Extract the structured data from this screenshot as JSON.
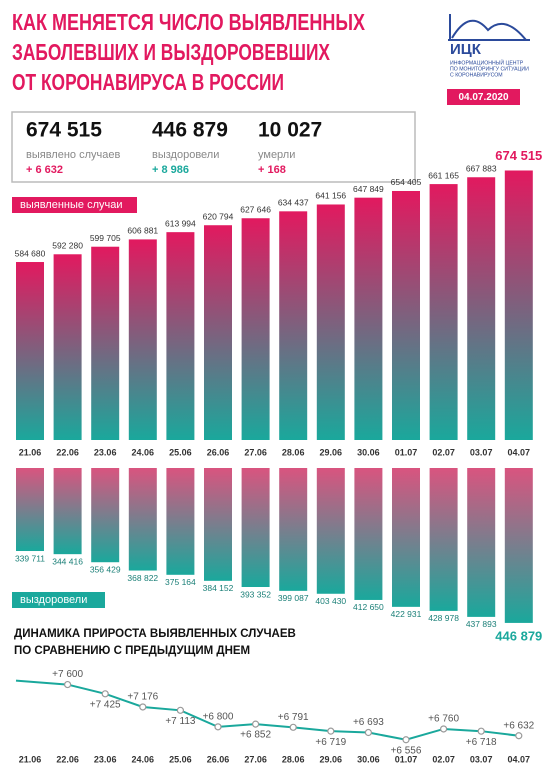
{
  "header": {
    "title": [
      "КАК МЕНЯЕТСЯ ЧИСЛО ВЫЯВЛЕННЫХ",
      "ЗАБОЛЕВШИХ И ВЫЗДОРОВЕВШИХ",
      "ОТ КОРОНАВИРУСА В РОССИИ"
    ],
    "logo": {
      "name": "ИЦК",
      "lines": [
        "ИНФОРМАЦИОННЫЙ ЦЕНТР",
        "ПО МОНИТОРИНГУ СИТУАЦИИ",
        "С КОРОНАВИРУСОМ"
      ]
    },
    "date": "04.07.2020"
  },
  "stats": [
    {
      "value": "674 515",
      "label": "выявлено случаев",
      "change": "+ 6 632",
      "color": "#e2195f"
    },
    {
      "value": "446 879",
      "label": "выздоровели",
      "change": "+ 8 986",
      "color": "#1aa89c"
    },
    {
      "value": "10 027",
      "label": "умерли",
      "change": "+ 168",
      "color": "#e2195f"
    }
  ],
  "chart_data": [
    {
      "type": "bar",
      "name": "выявленные случаи",
      "categories": [
        "21.06",
        "22.06",
        "23.06",
        "24.06",
        "25.06",
        "26.06",
        "27.06",
        "28.06",
        "29.06",
        "30.06",
        "01.07",
        "02.07",
        "03.07",
        "04.07"
      ],
      "values": [
        584680,
        592280,
        599705,
        606881,
        613994,
        620794,
        627646,
        634437,
        641156,
        647849,
        654405,
        661165,
        667883,
        674515
      ],
      "value_labels": [
        "584 680",
        "592 280",
        "599 705",
        "606 881",
        "613 994",
        "620 794",
        "627 646",
        "634 437",
        "641 156",
        "647 849",
        "654 405",
        "661 165",
        "667 883",
        "674 515"
      ],
      "colors": [
        "#e2195f",
        "#1aa89c"
      ],
      "ylim": [
        410000,
        675000
      ],
      "inverted": false,
      "highlight_last": true
    },
    {
      "type": "bar",
      "name": "выздоровели",
      "values": [
        339711,
        344416,
        356429,
        368822,
        375164,
        384152,
        393352,
        399087,
        403430,
        412650,
        422931,
        428978,
        437893,
        446879
      ],
      "value_labels": [
        "339 711",
        "344 416",
        "356 429",
        "368 822",
        "375 164",
        "384 152",
        "393 352",
        "399 087",
        "403 430",
        "412 650",
        "422 931",
        "428 978",
        "437 893",
        "446 879"
      ],
      "colors": [
        "#d9547f",
        "#1aa89c"
      ],
      "ylim": [
        216000,
        447000
      ],
      "inverted": true,
      "highlight_last": true
    },
    {
      "type": "line",
      "title": [
        "ДИНАМИКА ПРИРОСТА ВЫЯВЛЕННЫХ СЛУЧАЕВ",
        "ПО СРАВНЕНИЮ С ПРЕДЫДУЩИМ ДНЕМ"
      ],
      "categories": [
        "21.06",
        "22.06",
        "23.06",
        "24.06",
        "25.06",
        "26.06",
        "27.06",
        "28.06",
        "29.06",
        "30.06",
        "01.07",
        "02.07",
        "03.07",
        "04.07"
      ],
      "values": [
        null,
        7600,
        7425,
        7176,
        7113,
        6800,
        6852,
        6791,
        6719,
        6693,
        6556,
        6760,
        6718,
        6632
      ],
      "value_labels": [
        null,
        "+7 600",
        "+7 425",
        "+7 176",
        "+7 113",
        "+6 800",
        "+6 852",
        "+6 791",
        "+6 719",
        "+6 693",
        "+6 556",
        "+6 760",
        "+6 718",
        "+6 632"
      ],
      "color": "#1aa89c",
      "ylim": [
        6400,
        7800
      ]
    }
  ]
}
